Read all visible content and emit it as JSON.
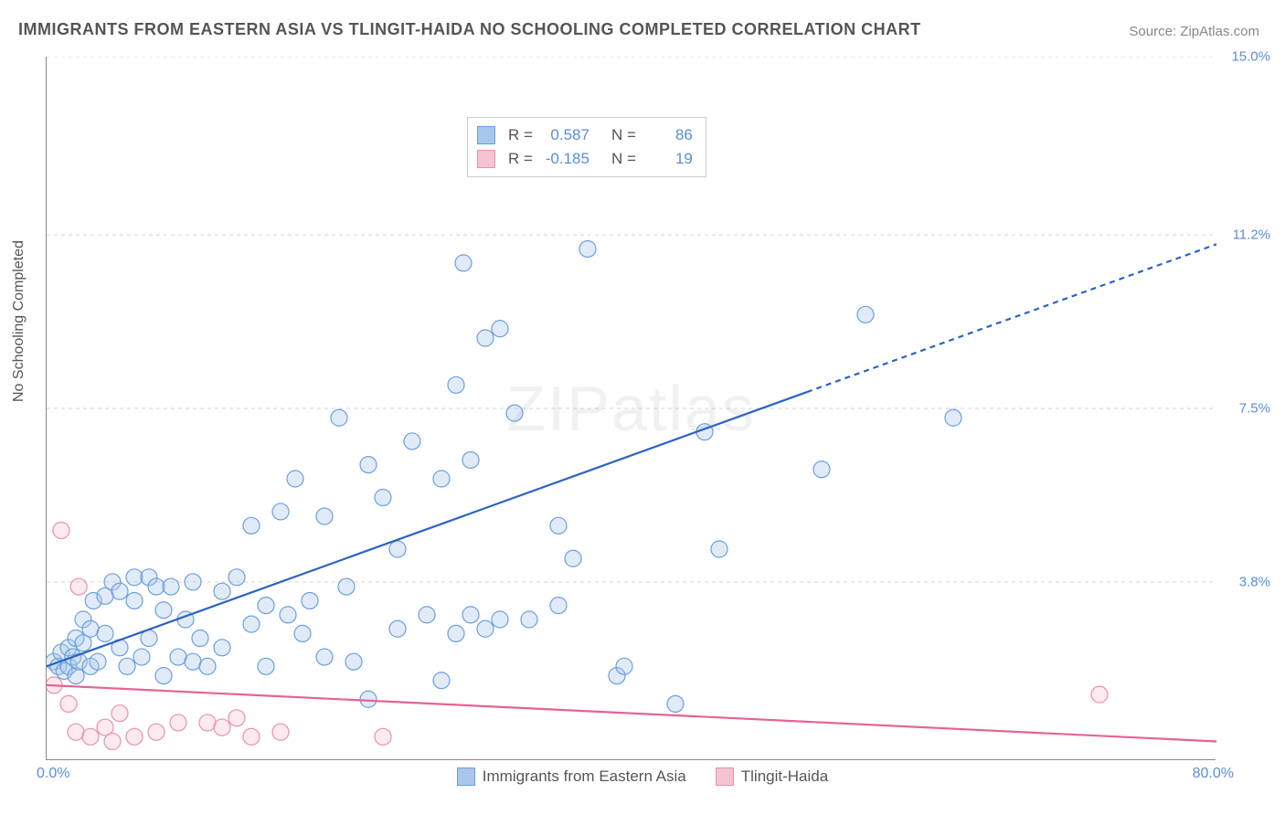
{
  "title": "IMMIGRANTS FROM EASTERN ASIA VS TLINGIT-HAIDA NO SCHOOLING COMPLETED CORRELATION CHART",
  "source_label": "Source:",
  "source_name": "ZipAtlas.com",
  "ylabel": "No Schooling Completed",
  "watermark": "ZIPatlas",
  "chart": {
    "type": "scatter",
    "xlim": [
      0,
      80
    ],
    "ylim": [
      0,
      15
    ],
    "x_axis_min_label": "0.0%",
    "x_axis_max_label": "80.0%",
    "y_ticks": [
      {
        "v": 3.8,
        "label": "3.8%"
      },
      {
        "v": 7.5,
        "label": "7.5%"
      },
      {
        "v": 11.2,
        "label": "11.2%"
      },
      {
        "v": 15.0,
        "label": "15.0%"
      }
    ],
    "background_color": "#ffffff",
    "grid_color": "#d5d5d5",
    "marker_radius": 9,
    "marker_fill_opacity": 0.35,
    "marker_stroke_width": 1.2,
    "trend_line_width": 2.2,
    "series": [
      {
        "name": "Immigrants from Eastern Asia",
        "color_fill": "#a9c7ea",
        "color_stroke": "#6b9fdc",
        "trend_color": "#2c63c4",
        "R": "0.587",
        "N": "86",
        "trend": {
          "x1": 0,
          "y1": 2.0,
          "x2": 80,
          "y2": 11.0,
          "solid_until_x": 52
        },
        "points": [
          [
            0.5,
            2.1
          ],
          [
            0.8,
            2.0
          ],
          [
            1.0,
            2.3
          ],
          [
            1.2,
            1.9
          ],
          [
            1.5,
            2.4
          ],
          [
            1.5,
            2.0
          ],
          [
            1.8,
            2.2
          ],
          [
            2.0,
            2.6
          ],
          [
            2.0,
            1.8
          ],
          [
            2.2,
            2.1
          ],
          [
            2.5,
            2.5
          ],
          [
            2.5,
            3.0
          ],
          [
            3.0,
            2.0
          ],
          [
            3.0,
            2.8
          ],
          [
            3.2,
            3.4
          ],
          [
            3.5,
            2.1
          ],
          [
            4.0,
            2.7
          ],
          [
            4.0,
            3.5
          ],
          [
            4.5,
            3.8
          ],
          [
            5.0,
            2.4
          ],
          [
            5.0,
            3.6
          ],
          [
            5.5,
            2.0
          ],
          [
            6.0,
            3.4
          ],
          [
            6.0,
            3.9
          ],
          [
            6.5,
            2.2
          ],
          [
            7.0,
            3.9
          ],
          [
            7.0,
            2.6
          ],
          [
            7.5,
            3.7
          ],
          [
            8.0,
            1.8
          ],
          [
            8.0,
            3.2
          ],
          [
            8.5,
            3.7
          ],
          [
            9.0,
            2.2
          ],
          [
            9.5,
            3.0
          ],
          [
            10.0,
            3.8
          ],
          [
            10.0,
            2.1
          ],
          [
            10.5,
            2.6
          ],
          [
            11.0,
            2.0
          ],
          [
            12.0,
            3.6
          ],
          [
            12.0,
            2.4
          ],
          [
            13.0,
            3.9
          ],
          [
            14.0,
            2.9
          ],
          [
            14.0,
            5.0
          ],
          [
            15.0,
            3.3
          ],
          [
            15.0,
            2.0
          ],
          [
            16.0,
            5.3
          ],
          [
            16.5,
            3.1
          ],
          [
            17.0,
            6.0
          ],
          [
            17.5,
            2.7
          ],
          [
            18.0,
            3.4
          ],
          [
            19.0,
            2.2
          ],
          [
            19.0,
            5.2
          ],
          [
            20.0,
            7.3
          ],
          [
            20.5,
            3.7
          ],
          [
            21.0,
            2.1
          ],
          [
            22.0,
            6.3
          ],
          [
            22.0,
            1.3
          ],
          [
            23.0,
            5.6
          ],
          [
            24.0,
            2.8
          ],
          [
            24.0,
            4.5
          ],
          [
            25.0,
            6.8
          ],
          [
            26.0,
            3.1
          ],
          [
            27.0,
            1.7
          ],
          [
            27.0,
            6.0
          ],
          [
            28.0,
            2.7
          ],
          [
            28.0,
            8.0
          ],
          [
            28.5,
            10.6
          ],
          [
            29.0,
            3.1
          ],
          [
            29.0,
            6.4
          ],
          [
            30.0,
            9.0
          ],
          [
            30.0,
            2.8
          ],
          [
            31.0,
            9.2
          ],
          [
            31.0,
            3.0
          ],
          [
            32.0,
            7.4
          ],
          [
            33.0,
            3.0
          ],
          [
            35.0,
            3.3
          ],
          [
            35.0,
            5.0
          ],
          [
            36.0,
            4.3
          ],
          [
            37.0,
            10.9
          ],
          [
            39.0,
            1.8
          ],
          [
            39.5,
            2.0
          ],
          [
            43.0,
            1.2
          ],
          [
            45.0,
            7.0
          ],
          [
            46.0,
            4.5
          ],
          [
            53.0,
            6.2
          ],
          [
            56.0,
            9.5
          ],
          [
            62.0,
            7.3
          ]
        ]
      },
      {
        "name": "Tlingit-Haida",
        "color_fill": "#f6c3d1",
        "color_stroke": "#ea8fb0",
        "trend_color": "#e56394",
        "R": "-0.185",
        "N": "19",
        "trend": {
          "x1": 0,
          "y1": 1.6,
          "x2": 80,
          "y2": 0.4,
          "solid_until_x": 80
        },
        "points": [
          [
            0.5,
            1.6
          ],
          [
            1.0,
            4.9
          ],
          [
            1.5,
            1.2
          ],
          [
            2.0,
            0.6
          ],
          [
            2.2,
            3.7
          ],
          [
            3.0,
            0.5
          ],
          [
            4.0,
            0.7
          ],
          [
            4.5,
            0.4
          ],
          [
            5.0,
            1.0
          ],
          [
            6.0,
            0.5
          ],
          [
            7.5,
            0.6
          ],
          [
            9.0,
            0.8
          ],
          [
            11.0,
            0.8
          ],
          [
            12.0,
            0.7
          ],
          [
            13.0,
            0.9
          ],
          [
            14.0,
            0.5
          ],
          [
            16.0,
            0.6
          ],
          [
            23.0,
            0.5
          ],
          [
            72.0,
            1.4
          ]
        ]
      }
    ]
  },
  "legend": {
    "r_label": "R =",
    "n_label": "N ="
  }
}
